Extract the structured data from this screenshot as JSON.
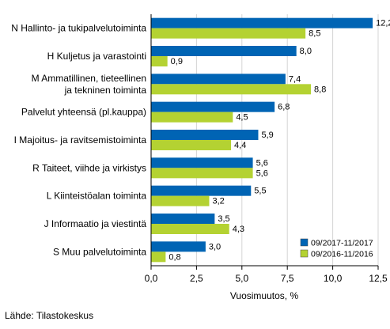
{
  "chart_data": {
    "type": "bar",
    "orientation": "horizontal",
    "categories": [
      [
        "N Hallinto- ja tukipalvelutoiminta"
      ],
      [
        "H Kuljetus ja varastointi"
      ],
      [
        "M Ammatillinen, tieteellinen",
        "ja tekninen toiminta"
      ],
      [
        "Palvelut yhteensä (pl.kauppa)"
      ],
      [
        "I Majoitus- ja ravitsemistoiminta"
      ],
      [
        "R Taiteet, viihde ja virkistys"
      ],
      [
        "L Kiinteistöalan toiminta"
      ],
      [
        "J Informaatio ja viestintä"
      ],
      [
        "S Muu palvelutoiminta"
      ]
    ],
    "series": [
      {
        "name": "09/2017-11/2017",
        "color": "#0064b4",
        "values": [
          12.2,
          8.0,
          7.4,
          6.8,
          5.9,
          5.6,
          5.5,
          3.5,
          3.0
        ],
        "labels": [
          "12,2",
          "8,0",
          "7,4",
          "6,8",
          "5,9",
          "5,6",
          "5,5",
          "3,5",
          "3,0"
        ]
      },
      {
        "name": "09/2016-11/2016",
        "color": "#b4d232",
        "values": [
          8.5,
          0.9,
          8.8,
          4.5,
          4.4,
          5.6,
          3.2,
          4.3,
          0.8
        ],
        "labels": [
          "8,5",
          "0,9",
          "8,8",
          "4,5",
          "4,4",
          "5,6",
          "3,2",
          "4,3",
          "0,8"
        ]
      }
    ],
    "xlim": [
      0,
      12.5
    ],
    "xticks": [
      0,
      2.5,
      5,
      7.5,
      10,
      12.5
    ],
    "xtick_labels": [
      "0,0",
      "2,5",
      "5,0",
      "7,5",
      "10,0",
      "12,5"
    ],
    "xlabel": "Vuosimuutos, %",
    "grid": true,
    "legend_position": "bottom-right"
  },
  "source": "Lähde: Tilastokeskus"
}
